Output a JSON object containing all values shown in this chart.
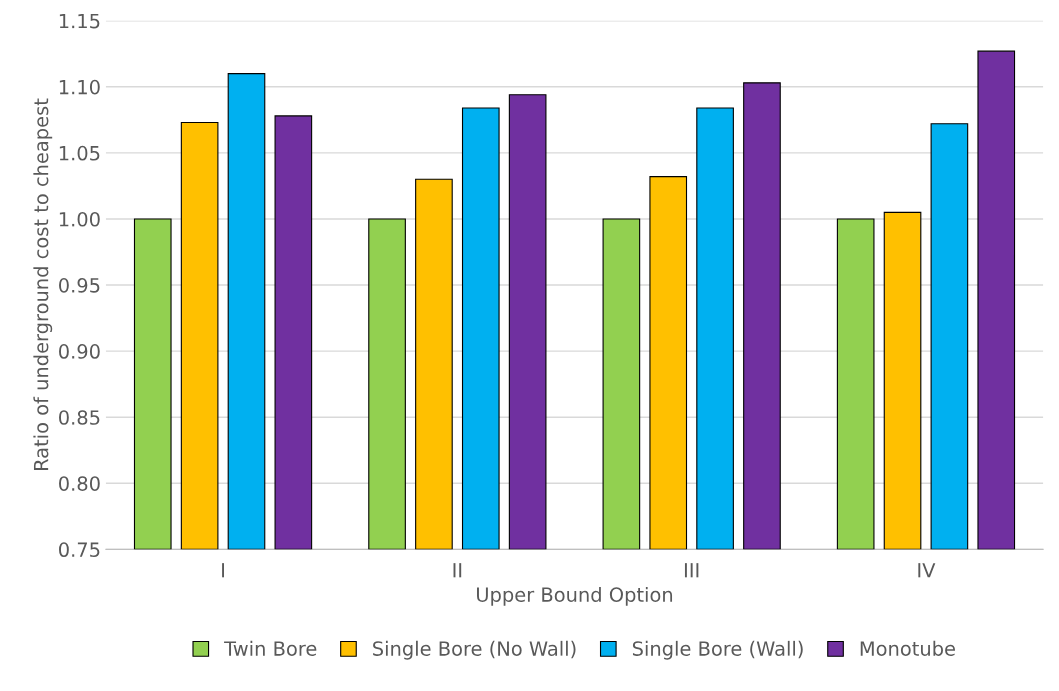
{
  "chart_data": {
    "type": "bar",
    "xlabel": "Upper Bound Option",
    "ylabel": "Ratio of underground cost to cheapest",
    "categories": [
      "I",
      "II",
      "III",
      "IV"
    ],
    "series": [
      {
        "name": "Twin Bore",
        "color": "#92d050",
        "values": [
          1.0,
          1.0,
          1.0,
          1.0
        ]
      },
      {
        "name": "Single Bore (No Wall)",
        "color": "#ffc000",
        "values": [
          1.073,
          1.03,
          1.032,
          1.005
        ]
      },
      {
        "name": "Single Bore (Wall)",
        "color": "#00b0f0",
        "values": [
          1.11,
          1.084,
          1.084,
          1.072
        ]
      },
      {
        "name": "Monotube",
        "color": "#7030a0",
        "values": [
          1.078,
          1.094,
          1.103,
          1.127
        ]
      }
    ],
    "ylim": [
      0.75,
      1.15
    ],
    "yticks": [
      0.75,
      {
        "value": 0.8,
        "label": "0.80"
      },
      0.85,
      {
        "value": 0.9,
        "label": "0.90"
      },
      0.95,
      {
        "value": 1.0,
        "label": "1.00"
      },
      1.05,
      {
        "value": 1.1,
        "label": "1.10"
      },
      1.15
    ],
    "grid": "y",
    "legend": "bottom"
  }
}
